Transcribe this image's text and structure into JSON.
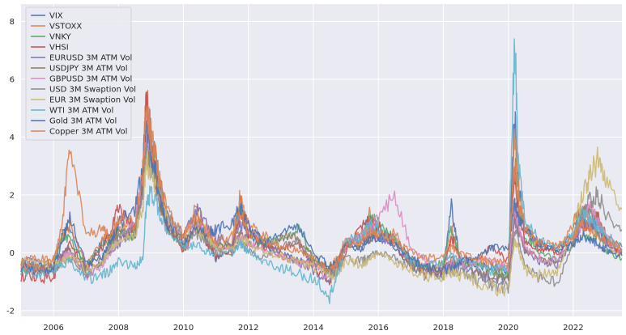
{
  "chart_data": {
    "type": "line",
    "title": "",
    "xlabel": "",
    "ylabel": "",
    "xlim": [
      2005.0,
      2023.5
    ],
    "ylim": [
      -2.2,
      8.6
    ],
    "grid": true,
    "legend_position": "top-left",
    "x_ticks": [
      "2006",
      "2008",
      "2010",
      "2012",
      "2014",
      "2016",
      "2018",
      "2020",
      "2022"
    ],
    "y_ticks": [
      "-2",
      "0",
      "2",
      "4",
      "6",
      "8"
    ],
    "x_tick_values": [
      2006,
      2008,
      2010,
      2012,
      2014,
      2016,
      2018,
      2020,
      2022
    ],
    "y_tick_values": [
      -2,
      0,
      2,
      4,
      6,
      8
    ],
    "x": [
      2005.0,
      2005.5,
      2006.0,
      2006.25,
      2006.5,
      2007.0,
      2007.5,
      2007.75,
      2008.0,
      2008.5,
      2008.75,
      2008.85,
      2009.0,
      2009.25,
      2009.5,
      2010.0,
      2010.4,
      2010.75,
      2011.0,
      2011.5,
      2011.75,
      2012.0,
      2012.5,
      2013.0,
      2013.5,
      2014.0,
      2014.5,
      2014.75,
      2015.0,
      2015.5,
      2015.75,
      2016.0,
      2016.5,
      2017.0,
      2017.5,
      2018.0,
      2018.25,
      2018.5,
      2019.0,
      2019.5,
      2020.0,
      2020.2,
      2020.3,
      2020.5,
      2021.0,
      2021.5,
      2022.0,
      2022.25,
      2022.5,
      2022.75,
      2023.0,
      2023.5
    ],
    "series": [
      {
        "name": "VIX",
        "color": "#4c72b0",
        "values": [
          -0.4,
          -0.5,
          -0.5,
          0.6,
          0.8,
          -0.6,
          0.4,
          0.6,
          0.8,
          0.5,
          2.5,
          4.8,
          4.2,
          2.5,
          1.0,
          0.2,
          1.2,
          0.4,
          -0.2,
          0.1,
          1.8,
          0.6,
          0.3,
          -0.1,
          -0.2,
          -0.3,
          -0.5,
          -0.3,
          0.3,
          0.1,
          0.9,
          0.5,
          0.2,
          -0.5,
          -0.6,
          -0.7,
          1.6,
          -0.2,
          -0.4,
          -0.5,
          -0.6,
          4.8,
          2.5,
          0.8,
          0.3,
          0.1,
          0.6,
          1.2,
          0.8,
          1.1,
          0.4,
          0.0
        ]
      },
      {
        "name": "VSTOXX",
        "color": "#dd8452",
        "values": [
          -0.3,
          -0.2,
          -0.2,
          0.5,
          0.9,
          -0.4,
          0.5,
          0.5,
          0.9,
          0.6,
          2.4,
          5.5,
          4.0,
          2.6,
          1.1,
          0.3,
          1.6,
          0.6,
          0.0,
          0.4,
          2.0,
          0.9,
          0.6,
          -0.1,
          -0.3,
          -0.4,
          -0.5,
          -0.2,
          0.5,
          0.6,
          1.4,
          0.8,
          0.7,
          -0.4,
          -0.6,
          -0.6,
          0.8,
          -0.1,
          -0.3,
          -0.4,
          -0.6,
          4.2,
          2.4,
          0.9,
          0.2,
          0.0,
          1.0,
          1.6,
          1.2,
          1.3,
          0.3,
          -0.1
        ]
      },
      {
        "name": "VNKY",
        "color": "#55a868",
        "values": [
          -0.6,
          -0.5,
          -0.4,
          0.4,
          0.6,
          -0.5,
          0.3,
          0.4,
          0.7,
          0.6,
          2.3,
          4.4,
          3.6,
          2.0,
          0.9,
          0.1,
          1.0,
          0.3,
          0.2,
          0.3,
          1.5,
          0.5,
          0.4,
          0.4,
          0.9,
          -0.2,
          -0.6,
          -0.4,
          0.2,
          0.6,
          1.2,
          1.0,
          0.5,
          -0.3,
          -0.5,
          -0.4,
          0.9,
          -0.2,
          -0.5,
          -0.6,
          -0.8,
          3.2,
          1.8,
          0.6,
          0.0,
          -0.3,
          0.3,
          0.8,
          0.5,
          0.6,
          0.1,
          -0.2
        ]
      },
      {
        "name": "VHSI",
        "color": "#c44e52",
        "values": [
          -0.8,
          -0.9,
          -0.8,
          -0.2,
          0.3,
          -0.6,
          0.2,
          0.7,
          1.5,
          0.8,
          2.8,
          5.2,
          3.8,
          2.0,
          0.8,
          0.0,
          0.9,
          0.3,
          -0.1,
          0.0,
          1.4,
          0.7,
          0.2,
          0.1,
          0.4,
          -0.5,
          -0.9,
          -0.6,
          0.0,
          0.9,
          1.1,
          0.9,
          0.3,
          -0.5,
          -0.7,
          -0.6,
          0.6,
          -0.2,
          -0.3,
          0.2,
          -0.3,
          2.8,
          1.6,
          0.4,
          0.1,
          0.0,
          0.5,
          1.0,
          0.9,
          1.2,
          0.5,
          0.0
        ]
      },
      {
        "name": "EURUSD 3M ATM Vol",
        "color": "#8172b3",
        "values": [
          -0.2,
          -0.4,
          -0.5,
          -0.1,
          0.2,
          -0.8,
          -0.3,
          0.1,
          0.3,
          0.9,
          2.2,
          4.0,
          3.2,
          2.0,
          1.2,
          0.6,
          1.5,
          0.9,
          0.5,
          0.4,
          1.0,
          0.7,
          0.5,
          0.0,
          -0.3,
          -0.6,
          -0.9,
          -0.5,
          0.4,
          0.5,
          0.6,
          0.5,
          0.3,
          -0.3,
          -0.6,
          -0.8,
          -0.4,
          -0.5,
          -0.7,
          -0.9,
          -1.0,
          1.2,
          0.8,
          0.1,
          -0.3,
          -0.4,
          0.4,
          0.9,
          1.0,
          0.8,
          0.3,
          0.1
        ]
      },
      {
        "name": "USDJPY 3M ATM Vol",
        "color": "#937860",
        "values": [
          -0.5,
          -0.6,
          -0.5,
          -0.1,
          0.1,
          -0.7,
          -0.2,
          0.3,
          0.6,
          0.8,
          2.4,
          4.2,
          3.0,
          1.8,
          1.0,
          0.3,
          0.9,
          0.5,
          0.3,
          0.2,
          0.6,
          0.4,
          0.2,
          0.6,
          0.5,
          -0.2,
          -0.5,
          -0.3,
          0.2,
          0.3,
          0.5,
          0.7,
          0.5,
          -0.2,
          -0.5,
          -0.6,
          -0.2,
          -0.4,
          -0.6,
          -0.8,
          -0.9,
          1.4,
          0.9,
          0.1,
          -0.2,
          -0.4,
          0.8,
          1.6,
          1.4,
          1.2,
          0.6,
          0.2
        ]
      },
      {
        "name": "GBPUSD 3M ATM Vol",
        "color": "#da8bc3",
        "values": [
          -0.4,
          -0.6,
          -0.6,
          -0.2,
          0.0,
          -0.8,
          -0.4,
          0.0,
          0.5,
          1.0,
          2.6,
          4.5,
          3.4,
          2.1,
          1.2,
          0.4,
          1.0,
          0.6,
          0.2,
          0.1,
          0.5,
          0.3,
          0.1,
          -0.1,
          -0.3,
          -0.5,
          -0.8,
          -0.5,
          0.2,
          0.6,
          0.9,
          1.2,
          2.0,
          0.2,
          -0.3,
          -0.5,
          -0.4,
          -0.4,
          -0.3,
          -0.2,
          -0.6,
          1.6,
          1.0,
          0.2,
          -0.2,
          -0.3,
          0.5,
          1.0,
          1.6,
          1.2,
          0.5,
          0.1
        ]
      },
      {
        "name": "USD 3M Swaption Vol",
        "color": "#8c8c8c",
        "values": [
          -0.3,
          -0.5,
          -0.6,
          -0.3,
          -0.2,
          -0.7,
          -0.3,
          0.2,
          0.6,
          0.7,
          1.8,
          3.6,
          3.0,
          2.2,
          1.4,
          0.5,
          0.6,
          0.4,
          0.1,
          0.0,
          0.4,
          0.1,
          -0.2,
          0.2,
          0.4,
          -0.3,
          -0.7,
          -0.6,
          -0.2,
          -0.3,
          -0.1,
          0.0,
          -0.2,
          -0.5,
          -0.8,
          -0.7,
          -0.6,
          -0.7,
          -0.9,
          -1.1,
          -1.2,
          0.8,
          0.5,
          -0.5,
          -0.9,
          -1.0,
          0.3,
          1.2,
          1.8,
          2.0,
          1.4,
          0.8
        ]
      },
      {
        "name": "EUR 3M Swaption Vol",
        "color": "#ccb974",
        "values": [
          -0.2,
          -0.4,
          -0.5,
          -0.3,
          -0.1,
          -0.6,
          -0.3,
          0.1,
          0.4,
          0.6,
          1.6,
          3.2,
          2.8,
          2.0,
          1.2,
          0.4,
          0.7,
          0.5,
          0.2,
          0.1,
          0.5,
          0.3,
          0.0,
          -0.1,
          -0.3,
          -0.5,
          -0.8,
          -0.7,
          -0.3,
          -0.4,
          -0.2,
          -0.1,
          -0.3,
          -0.6,
          -0.8,
          -0.8,
          -0.7,
          -0.8,
          -1.0,
          -1.2,
          -1.3,
          0.4,
          0.2,
          -0.6,
          -0.8,
          -0.7,
          0.8,
          1.8,
          2.6,
          3.2,
          2.4,
          1.5
        ]
      },
      {
        "name": "WTI 3M ATM Vol",
        "color": "#64b5cd",
        "values": [
          -0.6,
          -0.7,
          -0.6,
          -0.4,
          -0.3,
          -0.9,
          -0.8,
          -0.6,
          -0.3,
          -0.5,
          -0.2,
          1.5,
          2.2,
          1.4,
          0.8,
          0.2,
          0.3,
          0.0,
          0.0,
          0.0,
          0.3,
          0.0,
          -0.3,
          -0.5,
          -0.7,
          -0.9,
          -1.5,
          -0.8,
          0.4,
          0.6,
          1.0,
          0.8,
          0.4,
          -0.3,
          -0.4,
          -0.3,
          0.0,
          -0.3,
          -0.4,
          -0.6,
          -0.5,
          7.6,
          3.2,
          1.2,
          0.4,
          0.2,
          0.6,
          1.4,
          1.2,
          0.9,
          0.6,
          0.2
        ]
      },
      {
        "name": "Gold 3M ATM Vol",
        "color": "#4c72b0",
        "values": [
          -0.5,
          -0.6,
          -0.5,
          0.3,
          1.2,
          -0.4,
          -0.1,
          0.4,
          1.0,
          1.5,
          3.0,
          4.6,
          3.5,
          2.2,
          1.0,
          0.4,
          0.8,
          0.6,
          0.8,
          1.0,
          1.6,
          0.9,
          0.3,
          0.6,
          1.0,
          0.0,
          -0.5,
          -0.4,
          0.3,
          0.2,
          0.4,
          0.6,
          0.3,
          -0.2,
          -0.5,
          -0.6,
          -0.5,
          -0.3,
          -0.2,
          0.2,
          0.1,
          1.8,
          1.2,
          0.8,
          0.3,
          0.0,
          0.3,
          0.6,
          0.5,
          0.3,
          0.1,
          -0.1
        ]
      },
      {
        "name": "Copper 3M ATM Vol",
        "color": "#dd8452",
        "values": [
          -0.4,
          -0.5,
          -0.3,
          0.8,
          3.6,
          0.6,
          0.8,
          0.6,
          1.2,
          1.0,
          2.6,
          5.4,
          4.0,
          2.5,
          1.4,
          0.6,
          1.2,
          0.7,
          0.4,
          0.6,
          1.4,
          0.7,
          0.4,
          0.2,
          0.1,
          -0.2,
          -0.6,
          -0.4,
          0.2,
          0.4,
          0.8,
          0.6,
          0.4,
          0.0,
          -0.2,
          -0.1,
          0.2,
          0.0,
          -0.2,
          -0.3,
          -0.4,
          3.0,
          1.8,
          0.8,
          0.4,
          0.2,
          0.6,
          1.0,
          0.8,
          0.6,
          0.4,
          0.1
        ]
      }
    ]
  }
}
